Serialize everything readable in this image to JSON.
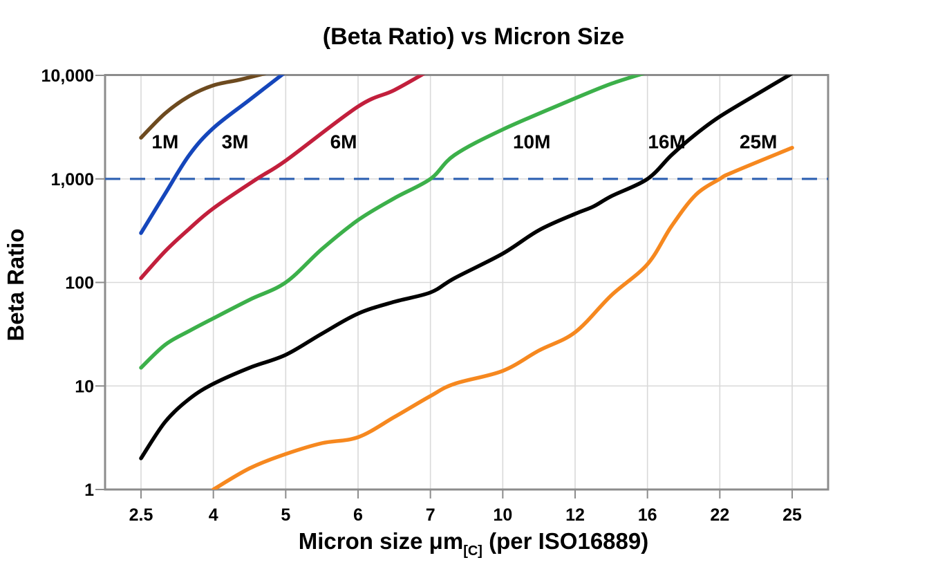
{
  "title": "(Beta Ratio) vs Micron Size",
  "chart_data": {
    "type": "line",
    "x_scale": "point-category",
    "y_scale": "log",
    "title": "(Beta Ratio) vs Micron Size",
    "xlabel": {
      "main": "Micron size μm",
      "sub": "[C]",
      "tail": " (per ISO16889)"
    },
    "ylabel": "Beta Ratio",
    "x_ticks": [
      2.5,
      4,
      5,
      6,
      7,
      10,
      12,
      16,
      22,
      25
    ],
    "x_tick_labels": [
      "2.5",
      "4",
      "5",
      "6",
      "7",
      "10",
      "12",
      "16",
      "22",
      "25"
    ],
    "y_ticks": [
      1,
      10,
      100,
      1000,
      10000
    ],
    "y_tick_labels": [
      "1",
      "10",
      "100",
      "1,000",
      "10,000"
    ],
    "ylim": [
      1,
      10000
    ],
    "grid": {
      "vertical": true,
      "horizontal_decades": true,
      "color": "#d9d9d9"
    },
    "frame_color": "#8c8c8c",
    "reference_line": {
      "y": 1000,
      "style": "dashed",
      "color": "#3465b4"
    },
    "series": [
      {
        "name": "1M",
        "color": "#6d4a1f",
        "label_at": [
          3.0,
          2300
        ],
        "points": [
          [
            2.5,
            2500
          ],
          [
            3,
            4300
          ],
          [
            3.5,
            6300
          ],
          [
            4,
            8000
          ],
          [
            4.4,
            9200
          ],
          [
            4.95,
            11500
          ]
        ]
      },
      {
        "name": "3M",
        "color": "#1546bb",
        "label_at": [
          4.3,
          2300
        ],
        "points": [
          [
            2.5,
            300
          ],
          [
            3,
            720
          ],
          [
            3.5,
            1700
          ],
          [
            4,
            3100
          ],
          [
            4.5,
            5800
          ],
          [
            5.05,
            11500
          ]
        ]
      },
      {
        "name": "6M",
        "color": "#c21f3c",
        "label_at": [
          5.8,
          2300
        ],
        "points": [
          [
            2.5,
            110
          ],
          [
            3,
            200
          ],
          [
            3.5,
            330
          ],
          [
            4,
            520
          ],
          [
            4.6,
            1000
          ],
          [
            5,
            1500
          ],
          [
            6,
            5000
          ],
          [
            6.5,
            7200
          ],
          [
            7.05,
            11500
          ]
        ]
      },
      {
        "name": "10M",
        "color": "#3cb04a",
        "label_at": [
          10.8,
          2300
        ],
        "points": [
          [
            2.5,
            15
          ],
          [
            3,
            25
          ],
          [
            3.5,
            34
          ],
          [
            4,
            45
          ],
          [
            4.5,
            68
          ],
          [
            5,
            100
          ],
          [
            5.5,
            210
          ],
          [
            6,
            400
          ],
          [
            6.5,
            650
          ],
          [
            7,
            1000
          ],
          [
            8,
            1700
          ],
          [
            10,
            3000
          ],
          [
            12,
            6000
          ],
          [
            14,
            8300
          ],
          [
            16.1,
            10800
          ]
        ]
      },
      {
        "name": "16M",
        "color": "#000000",
        "label_at": [
          17.6,
          2300
        ],
        "points": [
          [
            2.5,
            2
          ],
          [
            3,
            4.5
          ],
          [
            3.5,
            7.5
          ],
          [
            4,
            10.5
          ],
          [
            4.5,
            15
          ],
          [
            5,
            20
          ],
          [
            5.5,
            32
          ],
          [
            6,
            50
          ],
          [
            6.5,
            65
          ],
          [
            7,
            80
          ],
          [
            8,
            110
          ],
          [
            10,
            190
          ],
          [
            11,
            320
          ],
          [
            12,
            460
          ],
          [
            13,
            540
          ],
          [
            14,
            680
          ],
          [
            16,
            1000
          ],
          [
            18,
            1700
          ],
          [
            20,
            2700
          ],
          [
            22,
            4000
          ],
          [
            23.5,
            6500
          ],
          [
            25.1,
            10800
          ]
        ]
      },
      {
        "name": "25M",
        "color": "#f6881f",
        "label_at": [
          23.6,
          2300
        ],
        "points": [
          [
            4,
            1
          ],
          [
            4.5,
            1.6
          ],
          [
            5,
            2.2
          ],
          [
            5.5,
            2.8
          ],
          [
            6,
            3.2
          ],
          [
            6.5,
            5
          ],
          [
            7,
            8
          ],
          [
            8,
            10.5
          ],
          [
            10,
            14
          ],
          [
            11,
            22
          ],
          [
            12,
            33
          ],
          [
            14,
            75
          ],
          [
            16,
            150
          ],
          [
            18,
            350
          ],
          [
            20,
            700
          ],
          [
            22,
            1000
          ],
          [
            22.5,
            1150
          ],
          [
            25,
            2000
          ]
        ]
      }
    ]
  }
}
